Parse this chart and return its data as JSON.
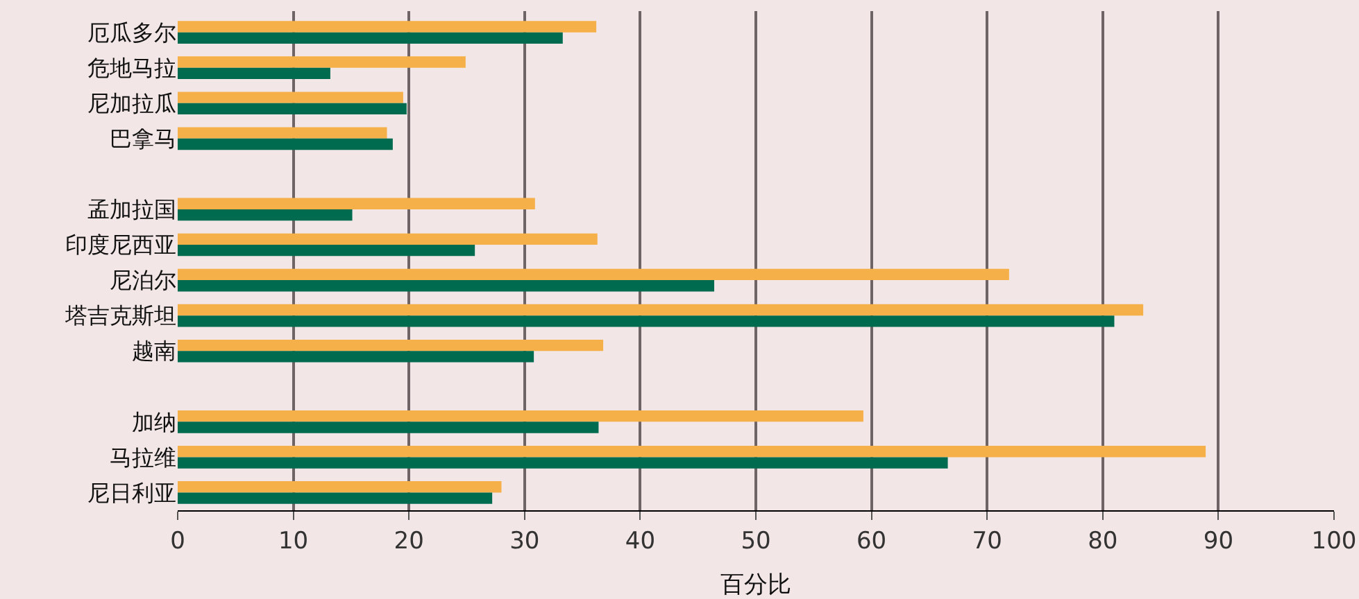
{
  "chart_data": {
    "type": "bar",
    "orientation": "horizontal",
    "xlabel": "百分比",
    "categories": [
      "厄瓜多尔",
      "危地马拉",
      "尼加拉瓜",
      "巴拿马",
      null,
      "孟加拉国",
      "印度尼西亚",
      "尼泊尔",
      "塔吉克斯坦",
      "越南",
      null,
      "加纳",
      "马拉维",
      "尼日利亚"
    ],
    "series": [
      {
        "color": "#f6b04a",
        "values": [
          36.2,
          24.9,
          19.5,
          18.1,
          null,
          30.9,
          36.3,
          71.9,
          83.5,
          36.8,
          null,
          59.3,
          88.9,
          28.0
        ]
      },
      {
        "color": "#006b4f",
        "values": [
          33.3,
          13.2,
          19.8,
          18.6,
          null,
          15.1,
          25.7,
          46.4,
          81.0,
          30.8,
          null,
          36.4,
          66.6,
          27.2
        ]
      }
    ],
    "xlim": [
      0,
      100
    ],
    "xticks": [
      0,
      10,
      20,
      30,
      40,
      50,
      60,
      70,
      80,
      90,
      100
    ],
    "grid": "x"
  }
}
